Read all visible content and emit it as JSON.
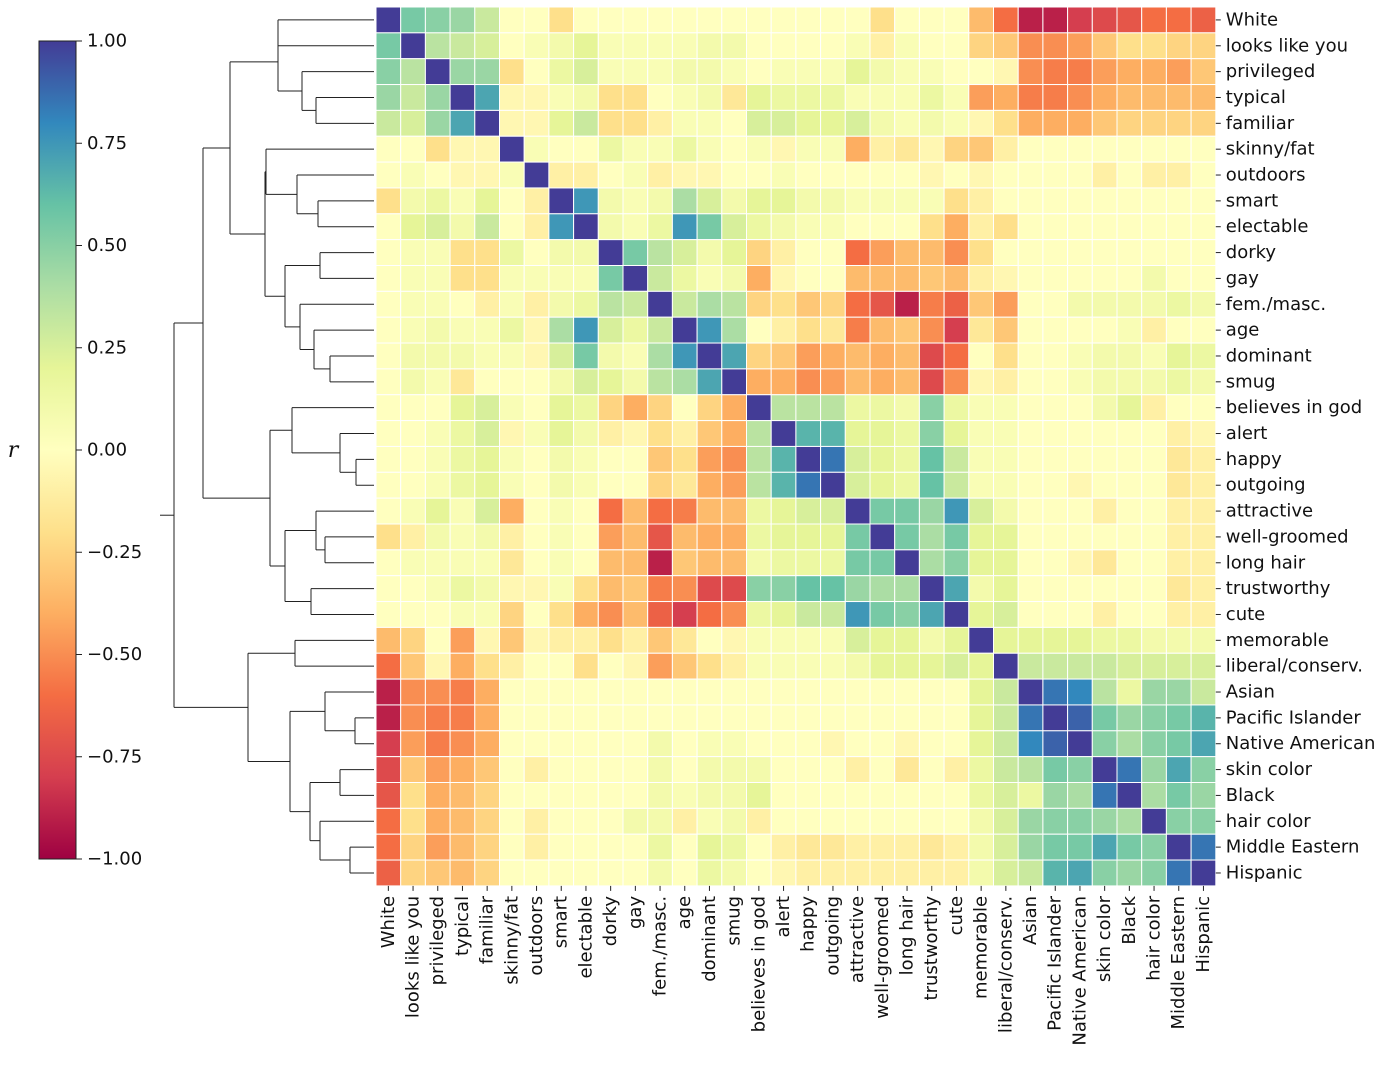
{
  "chart_data": {
    "type": "heatmap",
    "title": "",
    "variables": [
      "White",
      "looks like you",
      "privileged",
      "typical",
      "familiar",
      "skinny/fat",
      "outdoors",
      "smart",
      "electable",
      "dorky",
      "gay",
      "fem./masc.",
      "age",
      "dominant",
      "smug",
      "believes in god",
      "alert",
      "happy",
      "outgoing",
      "attractive",
      "well-groomed",
      "long hair",
      "trustworthy",
      "cute",
      "memorable",
      "liberal/conserv.",
      "Asian",
      "Pacific Islander",
      "Native American",
      "skin color",
      "Black",
      "hair color",
      "Middle Eastern",
      "Hispanic"
    ],
    "colorbar": {
      "label": "r",
      "range": [
        -1.0,
        1.0
      ],
      "ticks": [
        1.0,
        0.75,
        0.5,
        0.25,
        0.0,
        -0.25,
        -0.5,
        -0.75,
        -1.0
      ],
      "tick_labels": [
        "1.00",
        "0.75",
        "0.50",
        "0.25",
        "0.00",
        "−0.25",
        "−0.50",
        "−0.75",
        "−1.00"
      ],
      "colormap": "Spectral"
    },
    "dendrogram": "hierarchical clustering of rows (left)",
    "matrix": [
      [
        1.0,
        0.55,
        0.5,
        0.45,
        0.3,
        0.0,
        0.0,
        -0.2,
        0.0,
        0.0,
        0.0,
        0.0,
        0.0,
        0.0,
        0.0,
        0.0,
        0.0,
        0.0,
        0.0,
        0.0,
        -0.2,
        0.0,
        0.0,
        0.0,
        -0.35,
        -0.6,
        -0.9,
        -0.9,
        -0.8,
        -0.75,
        -0.7,
        -0.6,
        -0.6,
        -0.65
      ],
      [
        0.55,
        1.0,
        0.35,
        0.3,
        0.25,
        0.0,
        0.05,
        0.1,
        0.2,
        0.05,
        0.05,
        0.05,
        0.05,
        0.1,
        0.1,
        0.0,
        0.0,
        0.0,
        0.0,
        0.05,
        -0.1,
        0.05,
        0.0,
        0.0,
        -0.25,
        -0.3,
        -0.5,
        -0.5,
        -0.45,
        -0.3,
        -0.2,
        -0.2,
        -0.25,
        -0.25
      ],
      [
        0.5,
        0.35,
        1.0,
        0.45,
        0.45,
        -0.2,
        0.0,
        0.15,
        0.25,
        0.05,
        0.05,
        0.05,
        0.1,
        0.1,
        0.05,
        0.0,
        0.05,
        0.05,
        0.05,
        0.2,
        0.1,
        0.05,
        0.05,
        0.0,
        0.0,
        -0.05,
        -0.5,
        -0.55,
        -0.55,
        -0.45,
        -0.4,
        -0.4,
        -0.45,
        -0.3
      ],
      [
        0.45,
        0.3,
        0.45,
        1.0,
        0.7,
        -0.05,
        -0.05,
        0.05,
        0.1,
        -0.2,
        -0.2,
        0.0,
        0.05,
        0.1,
        -0.15,
        0.2,
        0.15,
        0.15,
        0.15,
        0.05,
        0.05,
        0.05,
        0.15,
        0.05,
        -0.45,
        -0.4,
        -0.55,
        -0.55,
        -0.5,
        -0.4,
        -0.35,
        -0.35,
        -0.35,
        -0.35
      ],
      [
        0.3,
        0.25,
        0.45,
        0.7,
        1.0,
        -0.05,
        -0.05,
        0.2,
        0.3,
        -0.2,
        -0.2,
        -0.1,
        0.05,
        0.05,
        0.0,
        0.25,
        0.25,
        0.2,
        0.2,
        0.25,
        0.1,
        0.05,
        0.1,
        0.05,
        -0.05,
        -0.2,
        -0.4,
        -0.4,
        -0.4,
        -0.3,
        -0.25,
        -0.25,
        -0.25,
        -0.25
      ],
      [
        0.0,
        0.0,
        -0.2,
        -0.05,
        -0.05,
        1.0,
        0.05,
        0.0,
        0.0,
        0.15,
        0.05,
        0.05,
        0.15,
        0.05,
        0.0,
        0.05,
        -0.05,
        0.05,
        0.05,
        -0.4,
        -0.1,
        -0.15,
        -0.05,
        -0.25,
        -0.3,
        -0.1,
        0.0,
        0.0,
        0.0,
        0.0,
        0.0,
        0.0,
        0.0,
        0.0
      ],
      [
        0.0,
        0.05,
        0.0,
        -0.05,
        -0.05,
        0.05,
        1.0,
        -0.1,
        -0.1,
        0.0,
        0.05,
        -0.1,
        -0.05,
        -0.05,
        0.0,
        0.0,
        0.05,
        0.0,
        0.0,
        0.0,
        0.0,
        0.0,
        -0.05,
        0.0,
        -0.05,
        0.0,
        0.0,
        0.0,
        0.0,
        -0.1,
        0.0,
        -0.1,
        -0.1,
        0.0
      ],
      [
        -0.2,
        0.1,
        0.15,
        0.05,
        0.2,
        0.0,
        -0.1,
        1.0,
        0.75,
        0.1,
        0.05,
        0.1,
        0.4,
        0.25,
        0.1,
        0.2,
        0.2,
        0.1,
        0.1,
        0.05,
        0.05,
        0.05,
        0.05,
        -0.2,
        -0.1,
        0.0,
        0.0,
        0.0,
        0.0,
        0.0,
        0.0,
        0.0,
        0.0,
        0.0
      ],
      [
        0.0,
        0.2,
        0.25,
        0.1,
        0.3,
        0.0,
        -0.1,
        0.75,
        1.0,
        0.1,
        0.05,
        0.15,
        0.75,
        0.55,
        0.25,
        0.15,
        0.1,
        0.05,
        0.05,
        0.0,
        0.0,
        0.0,
        -0.2,
        -0.4,
        -0.1,
        -0.2,
        0.0,
        0.0,
        0.0,
        0.0,
        0.0,
        0.0,
        0.0,
        0.0
      ],
      [
        0.0,
        0.05,
        0.05,
        -0.2,
        -0.2,
        0.15,
        0.0,
        0.1,
        0.1,
        1.0,
        0.55,
        0.35,
        0.25,
        0.1,
        0.2,
        -0.25,
        -0.1,
        0.0,
        0.0,
        -0.6,
        -0.45,
        -0.35,
        -0.35,
        -0.5,
        -0.2,
        0.0,
        0.0,
        0.0,
        0.0,
        0.0,
        0.0,
        0.0,
        0.0,
        0.0
      ],
      [
        0.0,
        0.05,
        0.05,
        -0.2,
        -0.2,
        0.05,
        0.05,
        0.05,
        0.05,
        0.55,
        1.0,
        0.3,
        0.15,
        0.05,
        0.1,
        -0.4,
        -0.05,
        0.0,
        0.0,
        -0.35,
        -0.35,
        -0.35,
        -0.3,
        -0.35,
        -0.1,
        -0.05,
        0.0,
        0.0,
        0.0,
        0.0,
        0.0,
        0.1,
        0.0,
        0.0
      ],
      [
        0.0,
        0.05,
        0.05,
        0.0,
        -0.1,
        0.05,
        -0.1,
        0.1,
        0.15,
        0.35,
        0.3,
        1.0,
        0.3,
        0.4,
        0.35,
        -0.25,
        -0.2,
        -0.3,
        -0.25,
        -0.6,
        -0.7,
        -0.9,
        -0.55,
        -0.65,
        -0.3,
        -0.45,
        0.0,
        0.0,
        0.1,
        0.1,
        0.1,
        0.1,
        0.15,
        0.1
      ],
      [
        0.0,
        0.05,
        0.1,
        0.05,
        0.05,
        0.15,
        -0.05,
        0.4,
        0.75,
        0.25,
        0.15,
        0.3,
        1.0,
        0.75,
        0.4,
        0.0,
        -0.1,
        -0.2,
        -0.15,
        -0.55,
        -0.35,
        -0.3,
        -0.5,
        -0.8,
        -0.15,
        -0.3,
        0.0,
        0.0,
        0.0,
        0.0,
        0.05,
        -0.1,
        0.0,
        0.0
      ],
      [
        0.0,
        0.1,
        0.1,
        0.1,
        0.05,
        0.05,
        -0.05,
        0.25,
        0.55,
        0.1,
        0.05,
        0.4,
        0.75,
        1.0,
        0.7,
        -0.25,
        -0.3,
        -0.45,
        -0.4,
        -0.35,
        -0.4,
        -0.35,
        -0.75,
        -0.6,
        0.0,
        -0.2,
        0.0,
        0.0,
        0.05,
        0.1,
        0.1,
        0.05,
        0.2,
        0.15
      ],
      [
        0.0,
        0.1,
        0.05,
        -0.15,
        0.0,
        0.0,
        0.0,
        0.1,
        0.25,
        0.2,
        0.1,
        0.35,
        0.4,
        0.7,
        1.0,
        -0.4,
        -0.4,
        -0.5,
        -0.45,
        -0.35,
        -0.4,
        -0.35,
        -0.75,
        -0.5,
        -0.05,
        -0.1,
        0.0,
        0.0,
        0.05,
        0.1,
        0.1,
        0.1,
        0.15,
        0.1
      ],
      [
        0.0,
        0.0,
        0.0,
        0.2,
        0.25,
        0.05,
        0.0,
        0.2,
        0.15,
        -0.25,
        -0.4,
        -0.25,
        0.0,
        -0.25,
        -0.4,
        1.0,
        0.35,
        0.35,
        0.35,
        0.15,
        0.15,
        0.1,
        0.5,
        0.15,
        0.05,
        0.05,
        0.0,
        0.0,
        0.0,
        0.1,
        0.2,
        -0.1,
        0.0,
        0.0
      ],
      [
        0.0,
        0.0,
        0.05,
        0.15,
        0.25,
        -0.05,
        0.05,
        0.2,
        0.1,
        -0.1,
        -0.05,
        -0.2,
        -0.1,
        -0.3,
        -0.4,
        0.35,
        1.0,
        0.65,
        0.65,
        0.2,
        0.2,
        0.15,
        0.5,
        0.2,
        0.05,
        0.05,
        0.0,
        0.0,
        0.0,
        0.0,
        0.0,
        0.0,
        -0.1,
        -0.05
      ],
      [
        0.0,
        0.0,
        0.05,
        0.15,
        0.2,
        0.05,
        0.0,
        0.1,
        0.05,
        0.0,
        0.0,
        -0.3,
        -0.2,
        -0.45,
        -0.5,
        0.35,
        0.65,
        1.0,
        0.85,
        0.25,
        0.2,
        0.15,
        0.6,
        0.3,
        0.05,
        0.05,
        0.0,
        0.0,
        0.0,
        0.0,
        0.0,
        0.0,
        -0.15,
        -0.1
      ],
      [
        0.0,
        0.0,
        0.05,
        0.15,
        0.2,
        0.05,
        0.0,
        0.1,
        0.05,
        0.0,
        0.0,
        -0.25,
        -0.15,
        -0.4,
        -0.45,
        0.35,
        0.65,
        0.85,
        1.0,
        0.25,
        0.2,
        0.15,
        0.6,
        0.3,
        0.05,
        0.05,
        0.0,
        0.0,
        -0.05,
        0.0,
        0.0,
        0.0,
        -0.15,
        -0.1
      ],
      [
        0.0,
        0.05,
        0.2,
        0.05,
        0.25,
        -0.4,
        0.0,
        0.05,
        0.0,
        -0.6,
        -0.35,
        -0.6,
        -0.55,
        -0.35,
        -0.35,
        0.15,
        0.2,
        0.25,
        0.25,
        1.0,
        0.55,
        0.55,
        0.45,
        0.75,
        0.25,
        0.1,
        0.0,
        0.0,
        0.0,
        -0.1,
        0.0,
        0.0,
        -0.1,
        -0.1
      ],
      [
        -0.2,
        -0.1,
        0.1,
        0.05,
        0.1,
        -0.1,
        0.0,
        0.05,
        0.0,
        -0.45,
        -0.35,
        -0.7,
        -0.35,
        -0.4,
        -0.4,
        0.15,
        0.2,
        0.2,
        0.2,
        0.55,
        1.0,
        0.55,
        0.4,
        0.55,
        0.2,
        0.2,
        0.0,
        0.0,
        0.0,
        0.0,
        0.0,
        0.0,
        -0.1,
        -0.1
      ],
      [
        0.0,
        0.05,
        0.05,
        0.05,
        0.05,
        -0.15,
        0.0,
        0.05,
        0.0,
        -0.35,
        -0.35,
        -0.9,
        -0.3,
        -0.35,
        -0.35,
        0.1,
        0.15,
        0.15,
        0.15,
        0.55,
        0.55,
        1.0,
        0.4,
        0.5,
        0.2,
        0.2,
        0.0,
        0.0,
        -0.05,
        -0.15,
        0.0,
        0.0,
        -0.1,
        -0.1
      ],
      [
        0.0,
        0.0,
        0.05,
        0.15,
        0.1,
        -0.05,
        -0.05,
        0.05,
        -0.2,
        -0.35,
        -0.3,
        -0.55,
        -0.5,
        -0.75,
        -0.75,
        0.5,
        0.5,
        0.6,
        0.6,
        0.45,
        0.4,
        0.4,
        1.0,
        0.7,
        0.1,
        0.2,
        0.0,
        0.0,
        0.0,
        0.0,
        0.0,
        0.0,
        -0.15,
        -0.1
      ],
      [
        0.0,
        0.0,
        0.0,
        0.05,
        0.05,
        -0.25,
        0.0,
        -0.2,
        -0.4,
        -0.5,
        -0.35,
        -0.65,
        -0.8,
        -0.6,
        -0.5,
        0.15,
        0.2,
        0.3,
        0.3,
        0.75,
        0.55,
        0.5,
        0.7,
        1.0,
        0.2,
        0.25,
        0.0,
        0.0,
        0.0,
        -0.1,
        0.0,
        0.0,
        -0.1,
        -0.1
      ],
      [
        -0.35,
        -0.25,
        0.0,
        -0.45,
        -0.05,
        -0.3,
        -0.05,
        -0.1,
        -0.1,
        -0.2,
        -0.1,
        -0.3,
        -0.15,
        0.0,
        -0.05,
        0.05,
        0.05,
        0.05,
        0.05,
        0.25,
        0.2,
        0.2,
        0.1,
        0.2,
        1.0,
        0.2,
        0.2,
        0.2,
        0.2,
        0.15,
        0.15,
        0.1,
        0.1,
        0.1
      ],
      [
        -0.6,
        -0.3,
        -0.05,
        -0.4,
        -0.2,
        -0.1,
        0.0,
        0.0,
        -0.2,
        0.0,
        -0.05,
        -0.45,
        -0.3,
        -0.2,
        -0.1,
        0.05,
        0.05,
        0.05,
        0.05,
        0.1,
        0.2,
        0.2,
        0.2,
        0.25,
        0.2,
        1.0,
        0.3,
        0.3,
        0.3,
        0.3,
        0.25,
        0.25,
        0.25,
        0.25
      ],
      [
        -0.9,
        -0.5,
        -0.5,
        -0.55,
        -0.4,
        0.0,
        0.0,
        0.0,
        0.0,
        0.0,
        0.0,
        0.0,
        0.0,
        0.0,
        0.0,
        0.0,
        0.0,
        0.0,
        0.0,
        0.0,
        0.0,
        0.0,
        0.0,
        0.0,
        0.2,
        0.3,
        1.0,
        0.85,
        0.8,
        0.35,
        0.15,
        0.45,
        0.45,
        0.3
      ],
      [
        -0.9,
        -0.5,
        -0.55,
        -0.55,
        -0.4,
        0.0,
        0.0,
        0.0,
        0.0,
        0.0,
        0.0,
        0.0,
        0.0,
        0.0,
        0.0,
        0.0,
        0.0,
        0.0,
        0.0,
        0.0,
        0.0,
        0.0,
        0.0,
        0.0,
        0.2,
        0.3,
        0.85,
        1.0,
        0.9,
        0.55,
        0.45,
        0.5,
        0.55,
        0.65
      ],
      [
        -0.8,
        -0.45,
        -0.55,
        -0.5,
        -0.4,
        0.0,
        0.0,
        0.0,
        0.0,
        0.0,
        0.0,
        0.1,
        0.0,
        0.05,
        0.05,
        0.0,
        0.0,
        0.0,
        -0.05,
        0.0,
        0.0,
        -0.05,
        0.0,
        0.0,
        0.2,
        0.3,
        0.8,
        0.9,
        1.0,
        0.5,
        0.4,
        0.5,
        0.55,
        0.7
      ],
      [
        -0.75,
        -0.3,
        -0.45,
        -0.4,
        -0.3,
        0.0,
        -0.1,
        0.0,
        0.0,
        0.0,
        0.0,
        0.1,
        0.0,
        0.1,
        0.1,
        0.1,
        0.0,
        0.0,
        0.0,
        -0.1,
        0.0,
        -0.15,
        0.0,
        -0.1,
        0.15,
        0.3,
        0.35,
        0.55,
        0.5,
        1.0,
        0.85,
        0.45,
        0.7,
        0.5
      ],
      [
        -0.7,
        -0.2,
        -0.4,
        -0.35,
        -0.25,
        0.0,
        0.0,
        0.0,
        0.0,
        0.0,
        0.0,
        0.1,
        0.05,
        0.1,
        0.1,
        0.2,
        0.0,
        0.0,
        0.0,
        0.0,
        0.0,
        0.0,
        0.0,
        0.0,
        0.15,
        0.25,
        0.15,
        0.45,
        0.4,
        0.85,
        1.0,
        0.4,
        0.55,
        0.45
      ],
      [
        -0.6,
        -0.2,
        -0.4,
        -0.35,
        -0.25,
        0.0,
        -0.1,
        0.0,
        0.0,
        0.0,
        0.1,
        0.1,
        -0.1,
        0.05,
        0.1,
        -0.1,
        0.0,
        0.0,
        0.0,
        0.0,
        0.0,
        0.0,
        0.0,
        0.0,
        0.1,
        0.25,
        0.45,
        0.5,
        0.5,
        0.45,
        0.4,
        1.0,
        0.5,
        0.5
      ],
      [
        -0.6,
        -0.25,
        -0.45,
        -0.35,
        -0.25,
        0.0,
        -0.1,
        0.0,
        0.0,
        0.0,
        0.0,
        0.15,
        0.0,
        0.2,
        0.15,
        0.0,
        -0.1,
        -0.15,
        -0.15,
        -0.1,
        -0.1,
        -0.1,
        -0.15,
        -0.1,
        0.1,
        0.25,
        0.45,
        0.55,
        0.55,
        0.7,
        0.55,
        0.5,
        1.0,
        0.85
      ],
      [
        -0.65,
        -0.25,
        -0.3,
        -0.35,
        -0.25,
        0.0,
        0.0,
        0.0,
        0.0,
        0.0,
        0.0,
        0.1,
        0.0,
        0.15,
        0.1,
        0.0,
        -0.05,
        -0.1,
        -0.1,
        -0.1,
        -0.1,
        -0.1,
        -0.1,
        -0.1,
        0.1,
        0.25,
        0.3,
        0.65,
        0.7,
        0.5,
        0.45,
        0.5,
        0.85,
        1.0
      ]
    ]
  }
}
